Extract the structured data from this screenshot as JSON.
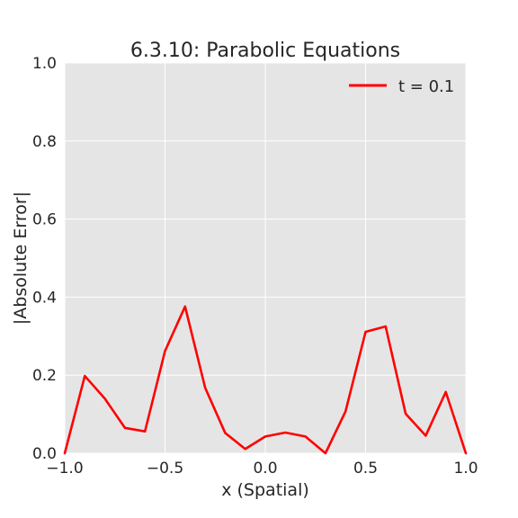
{
  "chart_data": {
    "type": "line",
    "title": "6.3.10: Parabolic Equations",
    "xlabel": "x (Spatial)",
    "ylabel": "|Absolute Error|",
    "xlim": [
      -1.0,
      1.0
    ],
    "ylim": [
      0.0,
      1.0
    ],
    "grid": true,
    "legend_position": "top-right",
    "background_color": "#e5e5e5",
    "grid_color": "#ffffff",
    "x_ticks": [
      -1.0,
      -0.5,
      0.0,
      0.5,
      1.0
    ],
    "x_tick_labels": [
      "−1.0",
      "−0.5",
      "0.0",
      "0.5",
      "1.0"
    ],
    "y_ticks": [
      0.0,
      0.2,
      0.4,
      0.6,
      0.8,
      1.0
    ],
    "y_tick_labels": [
      "0.0",
      "0.2",
      "0.4",
      "0.6",
      "0.8",
      "1.0"
    ],
    "series": [
      {
        "name": "t = 0.1",
        "color": "#ff0000",
        "x": [
          -1.0,
          -0.9,
          -0.8,
          -0.7,
          -0.6,
          -0.5,
          -0.4,
          -0.3,
          -0.2,
          -0.1,
          0.0,
          0.1,
          0.2,
          0.3,
          0.4,
          0.5,
          0.6,
          0.7,
          0.8,
          0.9,
          1.0
        ],
        "y": [
          0.0,
          0.198,
          0.14,
          0.065,
          0.056,
          0.262,
          0.376,
          0.168,
          0.052,
          0.011,
          0.043,
          0.053,
          0.043,
          0.0,
          0.107,
          0.311,
          0.325,
          0.101,
          0.045,
          0.157,
          0.0
        ]
      }
    ]
  }
}
